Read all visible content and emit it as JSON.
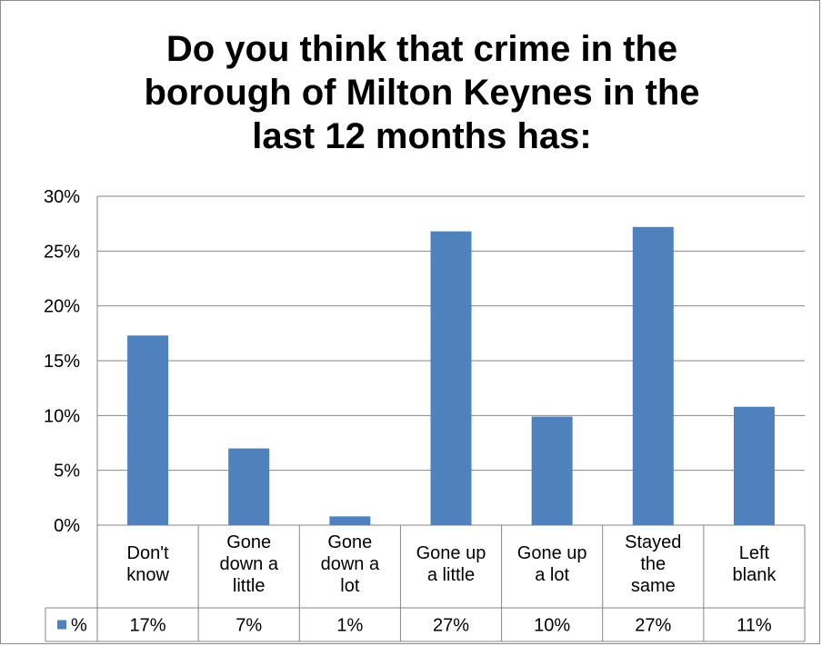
{
  "chart_data": {
    "type": "bar",
    "title": "Do you think that crime in the\nborough of Milton Keynes in the\nlast 12 months has:",
    "categories": [
      "Don't know",
      "Gone down a little",
      "Gone down a lot",
      "Gone up a little",
      "Gone up a lot",
      "Stayed the same",
      "Left blank"
    ],
    "category_lines": [
      [
        "Don't",
        "know"
      ],
      [
        "Gone",
        "down a",
        "little"
      ],
      [
        "Gone",
        "down a",
        "lot"
      ],
      [
        "Gone up",
        "a little"
      ],
      [
        "Gone up",
        "a lot"
      ],
      [
        "Stayed",
        "the",
        "same"
      ],
      [
        "Left",
        "blank"
      ]
    ],
    "series": [
      {
        "name": "%",
        "values": [
          17.3,
          7.0,
          0.8,
          26.8,
          9.9,
          27.2,
          10.8
        ],
        "table_labels": [
          "17%",
          "7%",
          "1%",
          "27%",
          "10%",
          "27%",
          "11%"
        ],
        "color": "#4f81bd"
      }
    ],
    "y_ticks": [
      "0%",
      "5%",
      "10%",
      "15%",
      "20%",
      "25%",
      "30%"
    ],
    "ylim": [
      0,
      30
    ],
    "grid": true,
    "legend": "data-table"
  }
}
